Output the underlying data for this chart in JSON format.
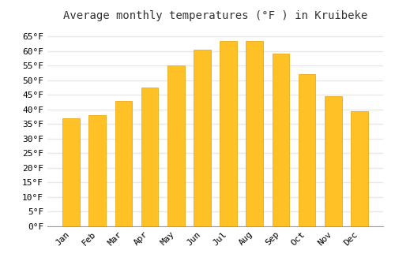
{
  "title": "Average monthly temperatures (°F ) in Kruibeke",
  "months": [
    "Jan",
    "Feb",
    "Mar",
    "Apr",
    "May",
    "Jun",
    "Jul",
    "Aug",
    "Sep",
    "Oct",
    "Nov",
    "Dec"
  ],
  "values": [
    37,
    38,
    43,
    47.5,
    55,
    60.5,
    63.5,
    63.5,
    59,
    52,
    44.5,
    39.5
  ],
  "bar_color": "#FFC125",
  "bar_edge_color": "#E8A000",
  "background_color": "#FFFFFF",
  "grid_color": "#E8E8E8",
  "ylim": [
    0,
    68
  ],
  "yticks": [
    0,
    5,
    10,
    15,
    20,
    25,
    30,
    35,
    40,
    45,
    50,
    55,
    60,
    65
  ],
  "title_fontsize": 10,
  "tick_fontsize": 8,
  "title_font": "monospace"
}
